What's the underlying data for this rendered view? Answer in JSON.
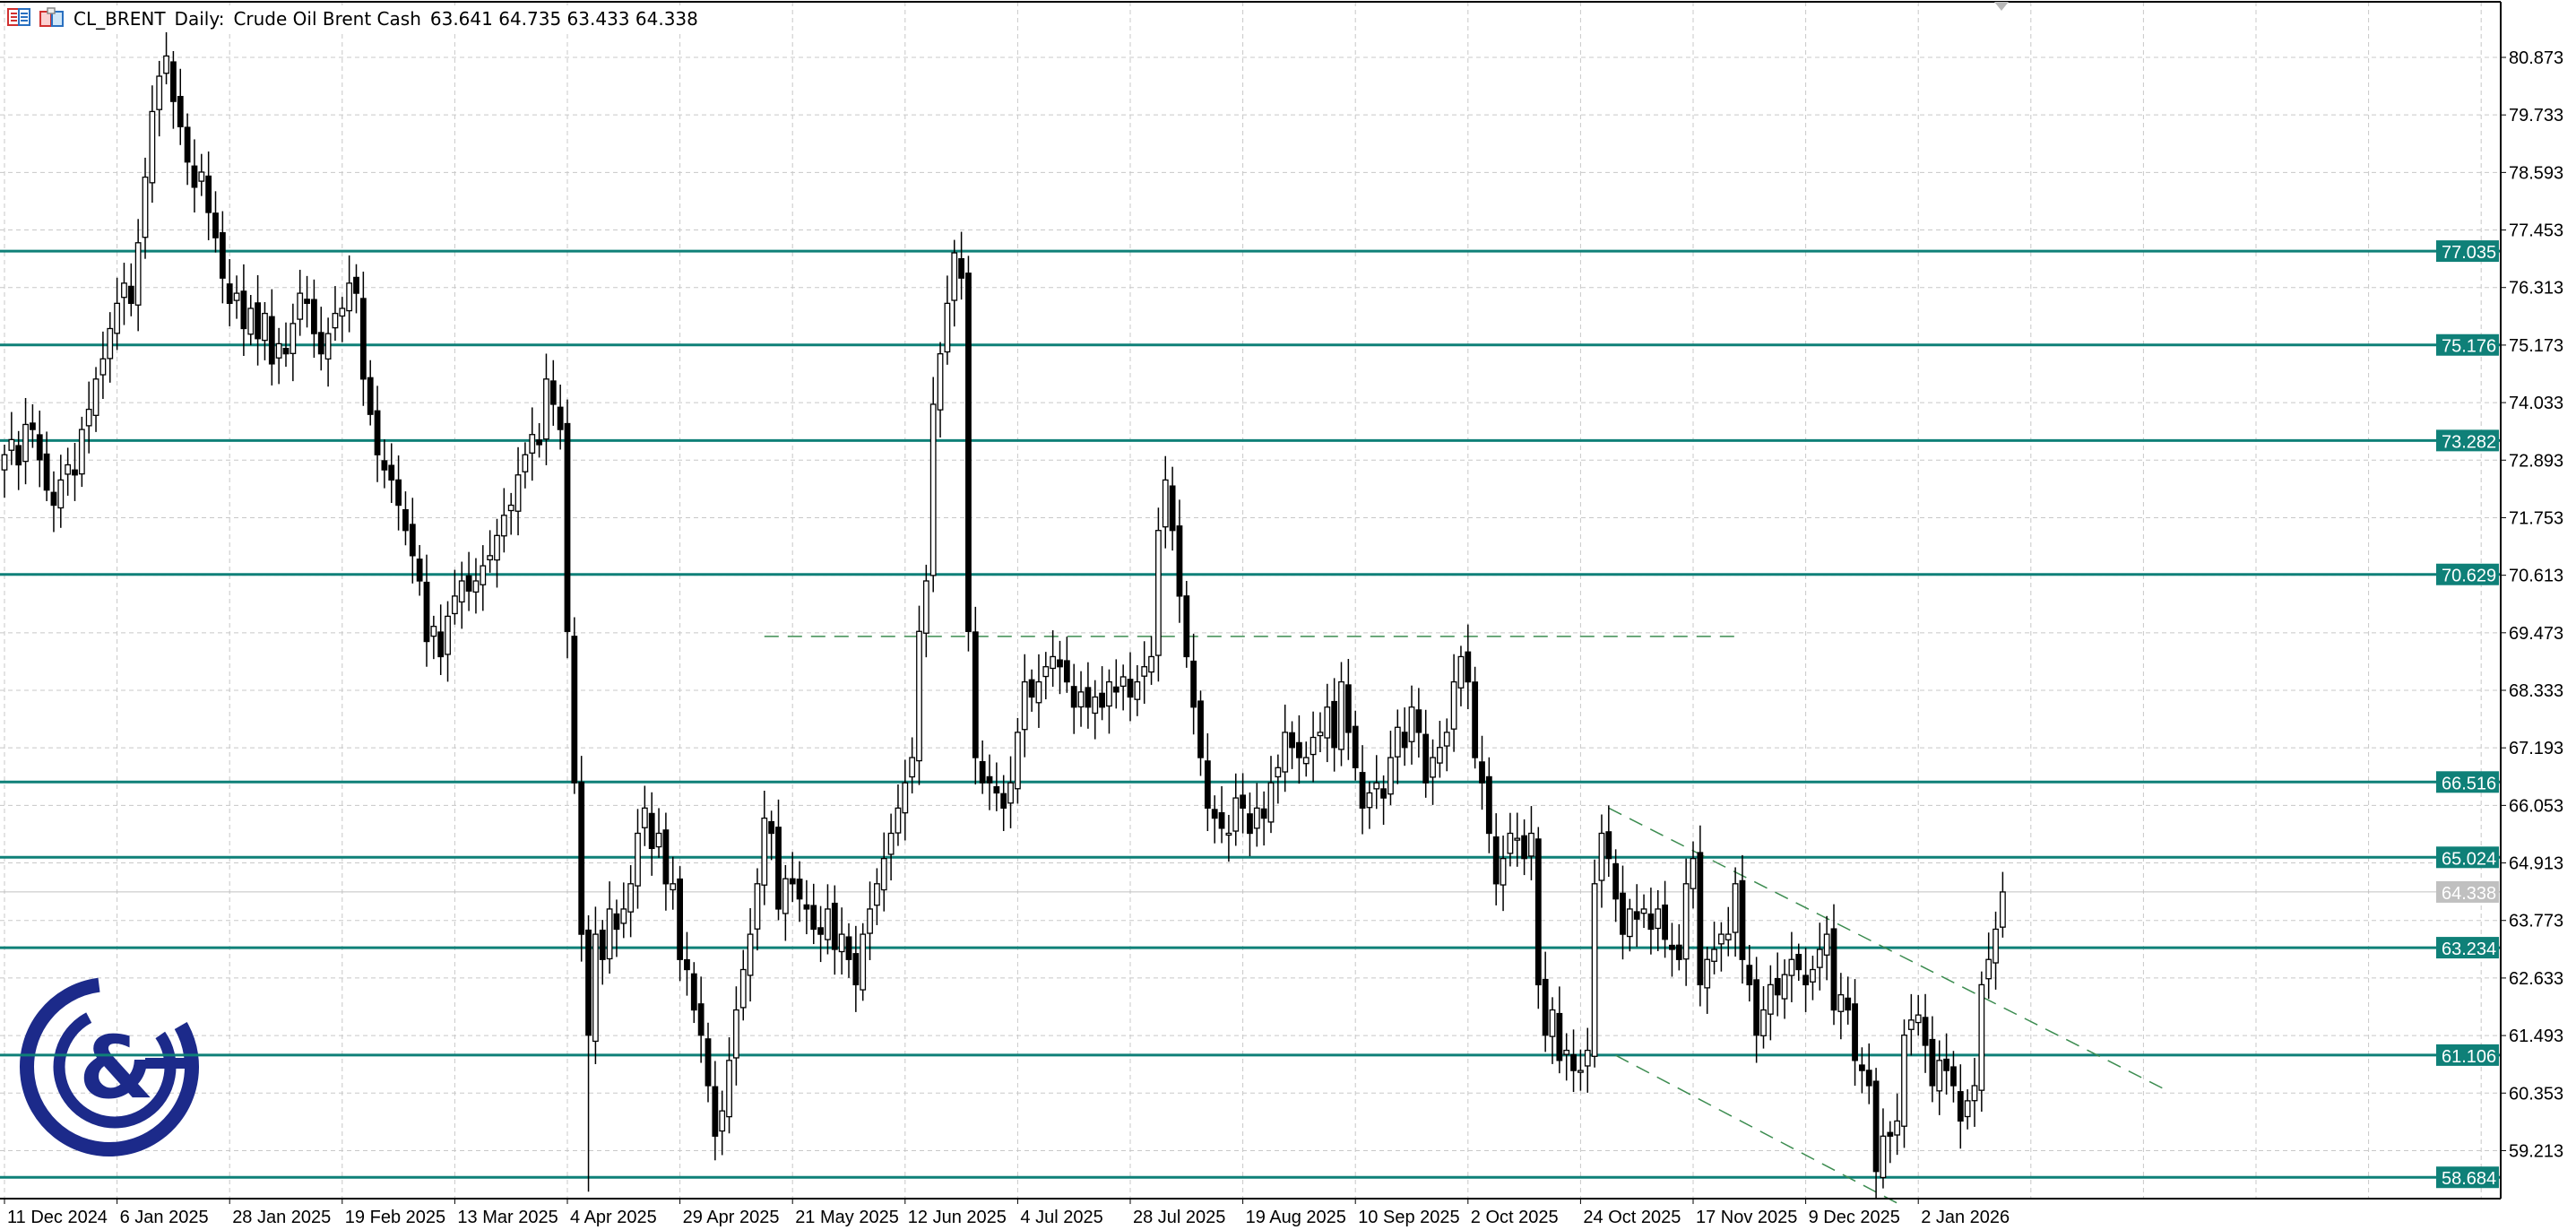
{
  "header": {
    "symbol": "CL_BRENT",
    "timeframe": "Daily:",
    "description": "Crude Oil Brent Cash",
    "ohlc": "63.641 64.735 63.433 64.338",
    "icons": [
      "chart-window-icon",
      "symbol-icon"
    ]
  },
  "colors": {
    "level_line": "#0f8078",
    "bull_body": "#ffffff",
    "bear_body": "#000000",
    "grid": "#c8c8c8",
    "trend_line": "#3c8c50",
    "current_price": "#c0c0c0",
    "logo": "#1c2a8a"
  },
  "chart_data": {
    "type": "candlestick",
    "title": "",
    "timeframe": "Daily",
    "grid": true,
    "x_tick_labels": [
      "11 Dec 2024",
      "6 Jan 2025",
      "28 Jan 2025",
      "19 Feb 2025",
      "13 Mar 2025",
      "4 Apr 2025",
      "29 Apr 2025",
      "21 May 2025",
      "12 Jun 2025",
      "4 Jul 2025",
      "28 Jul 2025",
      "19 Aug 2025",
      "10 Sep 2025",
      "2 Oct 2025",
      "24 Oct 2025",
      "17 Nov 2025",
      "9 Dec 2025",
      "2 Jan 2026"
    ],
    "x_tick_every_bars": 16,
    "y_ticks": [
      "80.873",
      "79.733",
      "78.593",
      "77.453",
      "76.313",
      "75.173",
      "74.033",
      "72.893",
      "71.753",
      "70.613",
      "69.473",
      "68.333",
      "67.193",
      "66.053",
      "64.913",
      "63.773",
      "62.633",
      "61.493",
      "60.353",
      "59.213"
    ],
    "ylim": [
      58.2,
      81.9
    ],
    "closes": [
      73.0,
      73.3,
      72.8,
      73.6,
      73.5,
      72.9,
      72.3,
      72.0,
      72.5,
      72.8,
      72.6,
      73.5,
      73.9,
      74.5,
      74.9,
      75.5,
      76.0,
      76.4,
      76.0,
      77.2,
      78.5,
      79.8,
      80.5,
      80.9,
      80.0,
      79.5,
      78.8,
      78.3,
      78.6,
      77.8,
      77.3,
      76.5,
      76.0,
      76.2,
      75.5,
      75.9,
      75.3,
      75.8,
      74.8,
      75.2,
      75.0,
      75.6,
      76.2,
      76.0,
      75.4,
      75.0,
      75.4,
      75.8,
      75.9,
      76.4,
      76.2,
      74.5,
      73.8,
      73.0,
      72.7,
      72.5,
      72.0,
      71.5,
      71.0,
      70.5,
      69.3,
      69.6,
      69.0,
      69.8,
      70.2,
      70.5,
      70.3,
      70.5,
      70.8,
      71.0,
      71.4,
      71.8,
      72.0,
      72.6,
      73.0,
      73.4,
      73.2,
      74.5,
      74.0,
      73.5,
      69.5,
      66.5,
      63.5,
      61.5,
      63.5,
      63.0,
      64.0,
      63.6,
      64.0,
      64.5,
      65.5,
      66.0,
      65.2,
      65.5,
      64.5,
      64.5,
      63.0,
      62.8,
      62.0,
      61.5,
      60.5,
      59.5,
      60.0,
      61.0,
      62.0,
      62.8,
      63.5,
      64.5,
      65.8,
      65.5,
      64.0,
      64.6,
      64.5,
      64.2,
      64.0,
      63.6,
      63.5,
      64.0,
      63.2,
      63.5,
      63.0,
      62.5,
      63.5,
      64.0,
      64.5,
      65.0,
      65.5,
      66.0,
      66.5,
      67.0,
      69.5,
      70.5,
      74.0,
      75.0,
      76.0,
      77.0,
      76.5,
      69.5,
      67.0,
      66.5,
      66.5,
      66.3,
      66.0,
      66.5,
      67.5,
      68.5,
      68.2,
      68.5,
      68.8,
      69.0,
      68.8,
      68.5,
      68.0,
      68.3,
      68.0,
      68.2,
      68.0,
      68.5,
      68.3,
      68.6,
      68.2,
      68.5,
      68.8,
      69.0,
      71.5,
      72.5,
      71.5,
      70.2,
      69.0,
      68.0,
      67.0,
      66.0,
      65.8,
      65.6,
      65.5,
      66.2,
      66.0,
      65.5,
      66.0,
      65.8,
      66.5,
      66.8,
      67.5,
      67.2,
      67.0,
      67.0,
      67.4,
      67.5,
      68.0,
      67.2,
      68.5,
      67.5,
      66.8,
      66.0,
      66.3,
      66.5,
      66.2,
      67.0,
      67.6,
      67.2,
      68.0,
      67.5,
      66.5,
      67.0,
      67.2,
      67.5,
      68.5,
      69.0,
      68.5,
      67.0,
      66.5,
      65.5,
      64.5,
      65.0,
      65.5,
      65.4,
      65.0,
      65.5,
      62.5,
      61.5,
      62.0,
      61.0,
      61.2,
      60.8,
      60.8,
      61.2,
      64.5,
      65.5,
      65.0,
      64.2,
      63.5,
      64.0,
      63.8,
      64.0,
      63.6,
      64.0,
      63.4,
      63.2,
      63.0,
      64.5,
      65.0,
      62.5,
      63.0,
      63.2,
      63.5,
      63.5,
      64.5,
      63.0,
      62.5,
      61.5,
      62.0,
      62.5,
      62.3,
      62.7,
      63.0,
      62.8,
      62.5,
      62.8,
      63.2,
      63.5,
      62.0,
      62.3,
      62.0,
      61.0,
      60.8,
      60.5,
      58.8,
      59.5,
      59.5,
      59.8,
      61.5,
      61.8,
      61.9,
      61.3,
      60.5,
      61.0,
      60.8,
      60.5,
      59.8,
      60.2,
      60.5,
      62.5,
      63.0,
      63.6,
      64.338
    ],
    "last_bar": {
      "open": 63.641,
      "high": 64.735,
      "low": 63.433,
      "close": 64.338
    },
    "current_price": "64.338",
    "levels": [
      "77.035",
      "75.176",
      "73.282",
      "70.629",
      "66.516",
      "65.024",
      "63.234",
      "61.106",
      "58.684"
    ],
    "horizontal_dashed_line": {
      "price": 69.4,
      "from_bar": 108,
      "to_bar": 246
    },
    "channel_lines": [
      {
        "name_hint": "upper",
        "from_bar": 228,
        "from_price": 66.0,
        "to_bar": 307,
        "to_price": 60.43
      },
      {
        "name_hint": "lower",
        "from_bar": 229,
        "from_price": 61.1,
        "to_bar": 270,
        "to_price": 58.1
      }
    ]
  },
  "logo": {
    "text": "C&G"
  }
}
